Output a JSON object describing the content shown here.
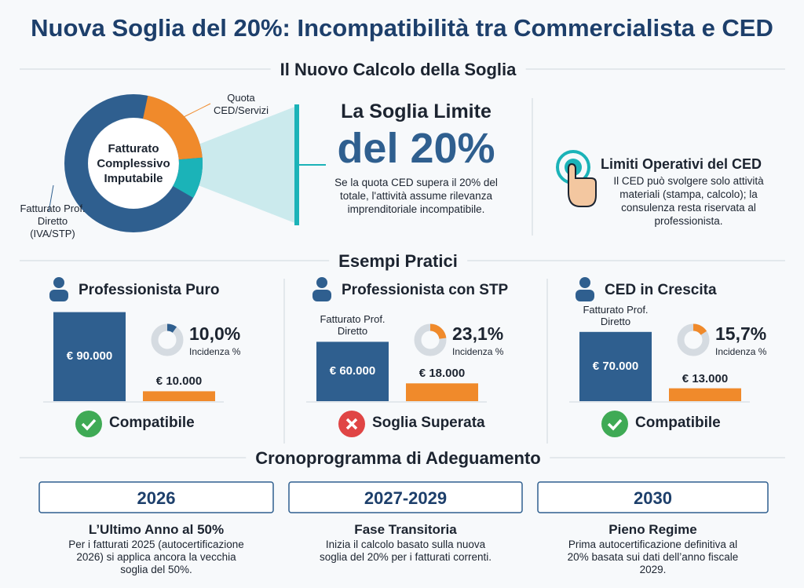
{
  "title": "Nuova Soglia del 20%: Incompatibilità tra Commercialista e CED",
  "calculation": {
    "heading": "Il Nuovo Calcolo della Soglia",
    "donut": {
      "center": "Fatturato Complessivo Imputabile",
      "ced_label": "Quota CED/Servizi",
      "direct_label": "Fatturato Prof. Diretto (IVA/STP)"
    },
    "threshold": {
      "label": "La Soglia Limite",
      "value": "del 20%",
      "text": "Se la quota CED supera il 20% del totale, l'attività assume rilevanza imprenditoriale incompatibile."
    },
    "limits": {
      "title": "Limiti Operativi del CED",
      "text": "Il CED può svolgere solo attività materiali (stampa, calcolo); la consulenza resta riservata al professionista."
    }
  },
  "examples": {
    "heading": "Esempi Pratici",
    "incidence_label": "Incidenza %",
    "items": [
      {
        "title": "Professionista Puro",
        "direct": {
          "value": 90000,
          "label": "€ 90.000"
        },
        "ced": {
          "value": 10000,
          "label": "€ 10.000"
        },
        "incidence": {
          "value": 10.0,
          "label": "10,0%"
        },
        "status": "Compatibile",
        "ok": true
      },
      {
        "title": "Professionista con STP",
        "caption": "Fatturato Prof. Diretto",
        "direct": {
          "value": 60000,
          "label": "€ 60.000"
        },
        "ced": {
          "value": 18000,
          "label": "€ 18.000"
        },
        "incidence": {
          "value": 23.1,
          "label": "23,1%"
        },
        "status": "Soglia Superata",
        "ok": false
      },
      {
        "title": "CED in Crescita",
        "caption": "Fatturato Prof. Diretto",
        "direct": {
          "value": 70000,
          "label": "€ 70.000"
        },
        "ced": {
          "value": 13000,
          "label": "€ 13.000"
        },
        "incidence": {
          "value": 15.7,
          "label": "15,7%"
        },
        "status": "Compatibile",
        "ok": true
      }
    ]
  },
  "timeline": {
    "heading": "Cronoprogramma di Adeguamento",
    "items": [
      {
        "year": "2026",
        "title": "L’Ultimo Anno al 50%",
        "text": "Per i fatturati 2025 (autocertificazione 2026) si applica ancora la vecchia soglia del 50%."
      },
      {
        "year": "2027-2029",
        "title": "Fase Transitoria",
        "text": "Inizia il calcolo basato sulla nuova soglia del 20% per i fatturati correnti."
      },
      {
        "year": "2030",
        "title": "Pieno Regime",
        "text": "Prima autocertificazione definitiva al 20% basata sui dati dell’anno fiscale 2029."
      }
    ]
  }
}
